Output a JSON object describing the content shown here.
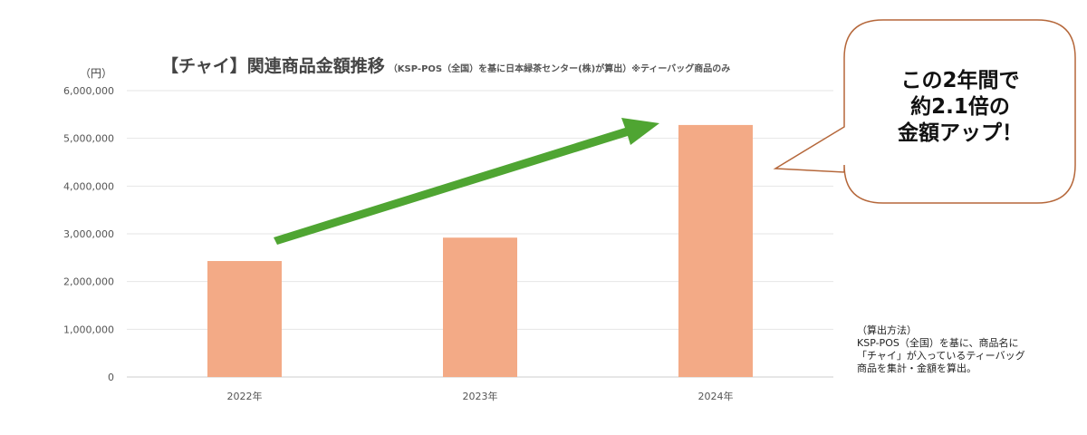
{
  "chart_data": {
    "type": "bar",
    "title": "【チャイ】関連商品金額推移",
    "subtitle": "（KSP-POS（全国）を基に日本緑茶センター(株)が算出）※ティーバッグ商品のみ",
    "ylabel": "（円）",
    "xlabel": "",
    "categories": [
      "2022年",
      "2023年",
      "2024年"
    ],
    "values": [
      2430000,
      2920000,
      5280000
    ],
    "ylim": [
      0,
      6000000
    ],
    "yticks": [
      "0",
      "1,000,000",
      "2,000,000",
      "3,000,000",
      "4,000,000",
      "5,000,000",
      "6,000,000"
    ],
    "grid": true,
    "bar_color": "#f3aa86",
    "arrow_color": "#4fa532"
  },
  "callout": {
    "lines": [
      "この2年間で",
      "約2.1倍の",
      "金額アップ！"
    ],
    "border_color": "#b5673a"
  },
  "note": {
    "heading": "（算出方法）",
    "body": "KSP-POS（全国）を基に、商品名に「チャイ」が入っているティーバッグ商品を集計・金額を算出。"
  }
}
